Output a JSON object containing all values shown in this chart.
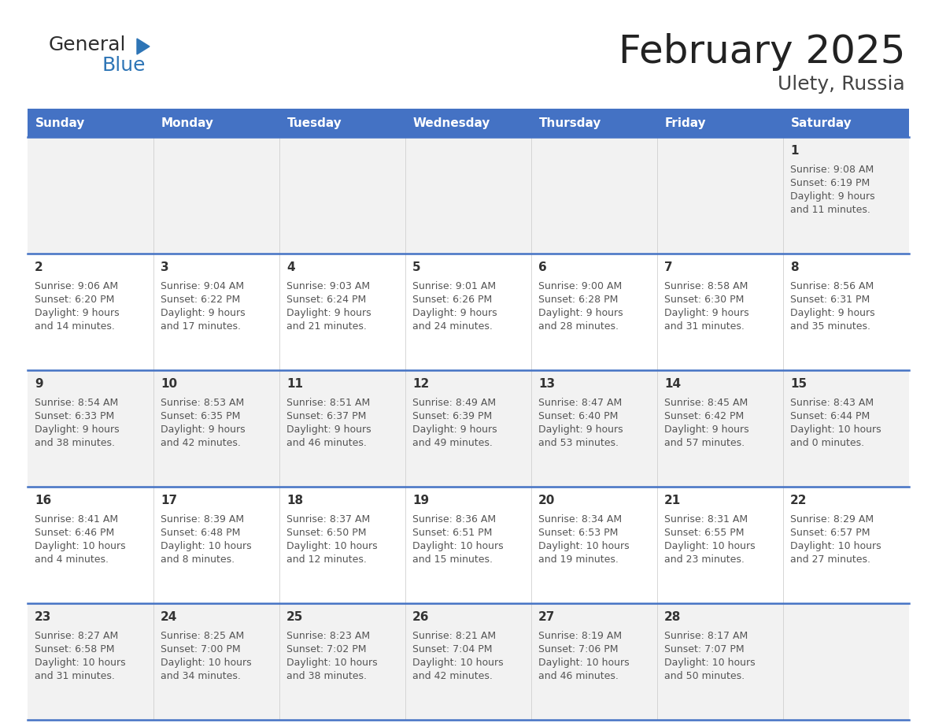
{
  "title": "February 2025",
  "subtitle": "Ulety, Russia",
  "header_bg": "#4472C4",
  "header_text_color": "#FFFFFF",
  "days_of_week": [
    "Sunday",
    "Monday",
    "Tuesday",
    "Wednesday",
    "Thursday",
    "Friday",
    "Saturday"
  ],
  "row_bg_even": "#F2F2F2",
  "row_bg_odd": "#FFFFFF",
  "cell_text_color": "#555555",
  "divider_color": "#4472C4",
  "calendar": [
    [
      {
        "day": null
      },
      {
        "day": null
      },
      {
        "day": null
      },
      {
        "day": null
      },
      {
        "day": null
      },
      {
        "day": null
      },
      {
        "day": 1,
        "sunrise": "9:08 AM",
        "sunset": "6:19 PM",
        "daylight": "9 hours\nand 11 minutes."
      }
    ],
    [
      {
        "day": 2,
        "sunrise": "9:06 AM",
        "sunset": "6:20 PM",
        "daylight": "9 hours\nand 14 minutes."
      },
      {
        "day": 3,
        "sunrise": "9:04 AM",
        "sunset": "6:22 PM",
        "daylight": "9 hours\nand 17 minutes."
      },
      {
        "day": 4,
        "sunrise": "9:03 AM",
        "sunset": "6:24 PM",
        "daylight": "9 hours\nand 21 minutes."
      },
      {
        "day": 5,
        "sunrise": "9:01 AM",
        "sunset": "6:26 PM",
        "daylight": "9 hours\nand 24 minutes."
      },
      {
        "day": 6,
        "sunrise": "9:00 AM",
        "sunset": "6:28 PM",
        "daylight": "9 hours\nand 28 minutes."
      },
      {
        "day": 7,
        "sunrise": "8:58 AM",
        "sunset": "6:30 PM",
        "daylight": "9 hours\nand 31 minutes."
      },
      {
        "day": 8,
        "sunrise": "8:56 AM",
        "sunset": "6:31 PM",
        "daylight": "9 hours\nand 35 minutes."
      }
    ],
    [
      {
        "day": 9,
        "sunrise": "8:54 AM",
        "sunset": "6:33 PM",
        "daylight": "9 hours\nand 38 minutes."
      },
      {
        "day": 10,
        "sunrise": "8:53 AM",
        "sunset": "6:35 PM",
        "daylight": "9 hours\nand 42 minutes."
      },
      {
        "day": 11,
        "sunrise": "8:51 AM",
        "sunset": "6:37 PM",
        "daylight": "9 hours\nand 46 minutes."
      },
      {
        "day": 12,
        "sunrise": "8:49 AM",
        "sunset": "6:39 PM",
        "daylight": "9 hours\nand 49 minutes."
      },
      {
        "day": 13,
        "sunrise": "8:47 AM",
        "sunset": "6:40 PM",
        "daylight": "9 hours\nand 53 minutes."
      },
      {
        "day": 14,
        "sunrise": "8:45 AM",
        "sunset": "6:42 PM",
        "daylight": "9 hours\nand 57 minutes."
      },
      {
        "day": 15,
        "sunrise": "8:43 AM",
        "sunset": "6:44 PM",
        "daylight": "10 hours\nand 0 minutes."
      }
    ],
    [
      {
        "day": 16,
        "sunrise": "8:41 AM",
        "sunset": "6:46 PM",
        "daylight": "10 hours\nand 4 minutes."
      },
      {
        "day": 17,
        "sunrise": "8:39 AM",
        "sunset": "6:48 PM",
        "daylight": "10 hours\nand 8 minutes."
      },
      {
        "day": 18,
        "sunrise": "8:37 AM",
        "sunset": "6:50 PM",
        "daylight": "10 hours\nand 12 minutes."
      },
      {
        "day": 19,
        "sunrise": "8:36 AM",
        "sunset": "6:51 PM",
        "daylight": "10 hours\nand 15 minutes."
      },
      {
        "day": 20,
        "sunrise": "8:34 AM",
        "sunset": "6:53 PM",
        "daylight": "10 hours\nand 19 minutes."
      },
      {
        "day": 21,
        "sunrise": "8:31 AM",
        "sunset": "6:55 PM",
        "daylight": "10 hours\nand 23 minutes."
      },
      {
        "day": 22,
        "sunrise": "8:29 AM",
        "sunset": "6:57 PM",
        "daylight": "10 hours\nand 27 minutes."
      }
    ],
    [
      {
        "day": 23,
        "sunrise": "8:27 AM",
        "sunset": "6:58 PM",
        "daylight": "10 hours\nand 31 minutes."
      },
      {
        "day": 24,
        "sunrise": "8:25 AM",
        "sunset": "7:00 PM",
        "daylight": "10 hours\nand 34 minutes."
      },
      {
        "day": 25,
        "sunrise": "8:23 AM",
        "sunset": "7:02 PM",
        "daylight": "10 hours\nand 38 minutes."
      },
      {
        "day": 26,
        "sunrise": "8:21 AM",
        "sunset": "7:04 PM",
        "daylight": "10 hours\nand 42 minutes."
      },
      {
        "day": 27,
        "sunrise": "8:19 AM",
        "sunset": "7:06 PM",
        "daylight": "10 hours\nand 46 minutes."
      },
      {
        "day": 28,
        "sunrise": "8:17 AM",
        "sunset": "7:07 PM",
        "daylight": "10 hours\nand 50 minutes."
      },
      {
        "day": null
      }
    ]
  ]
}
